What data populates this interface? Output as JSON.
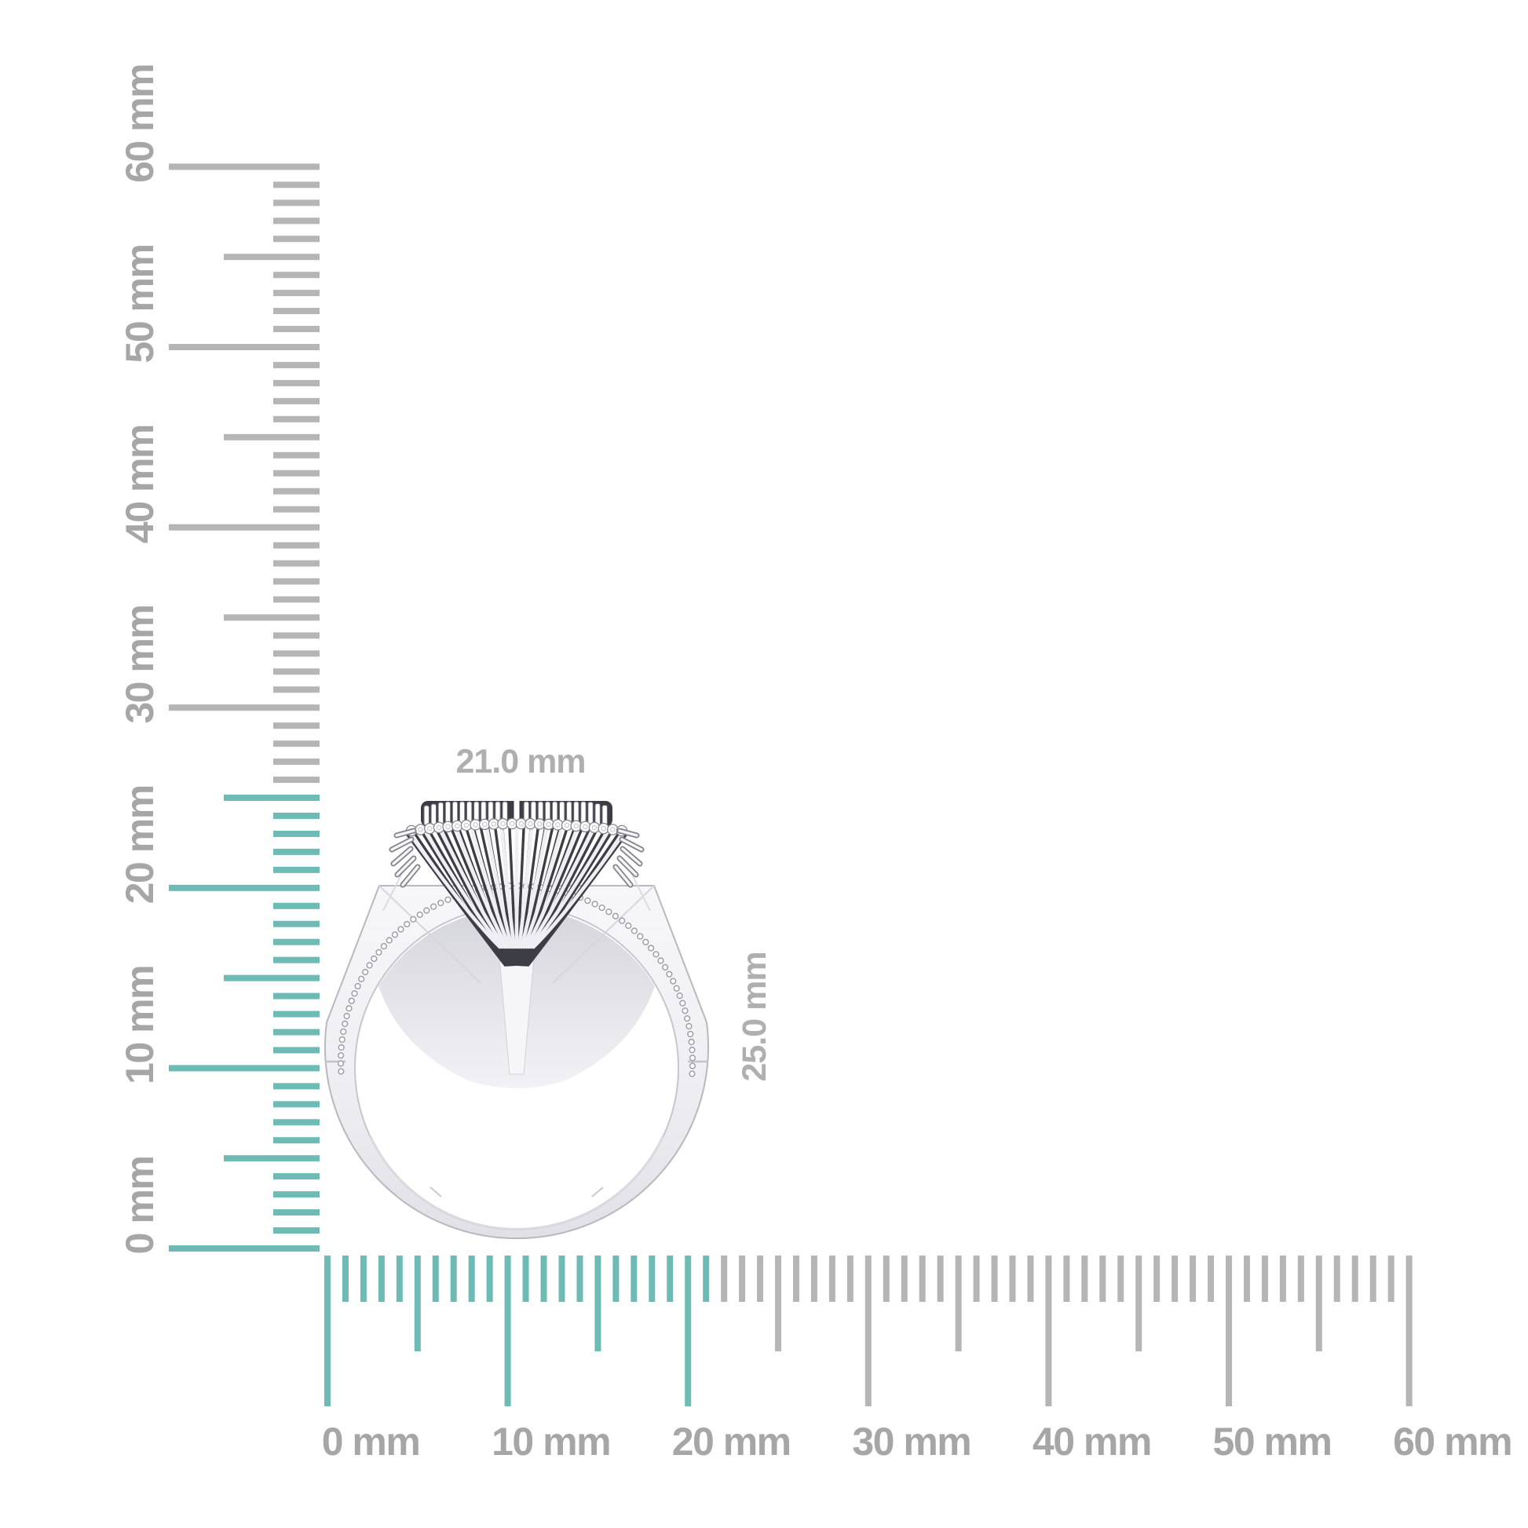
{
  "page": {
    "background": "#ffffff",
    "description": "Product dimension diagram: diamond cluster cocktail ring shown in side profile against white background with millimeter rulers along left and bottom edges"
  },
  "product": {
    "subject": "white-metal diamond cluster ring, side profile view"
  },
  "dimensions": {
    "width_label": "21.0 mm",
    "height_label": "25.0 mm"
  },
  "rulers": {
    "unit": "mm",
    "horizontal": {
      "min": 0,
      "max": 60,
      "major_step": 10,
      "mid_step": 5,
      "minor_step": 1,
      "highlight_extent_mm": 21,
      "labels": [
        "0 mm",
        "10 mm",
        "20 mm",
        "30 mm",
        "40 mm",
        "50 mm",
        "60 mm"
      ]
    },
    "vertical": {
      "min": 0,
      "max": 60,
      "major_step": 10,
      "mid_step": 5,
      "minor_step": 1,
      "highlight_extent_mm": 25,
      "labels": [
        "0 mm",
        "10 mm",
        "20 mm",
        "30 mm",
        "40 mm",
        "50 mm",
        "60 mm"
      ]
    }
  },
  "colors": {
    "highlight_teal": "#6ebab4",
    "tick_gray": "#b5b5b5",
    "ruler_label_gray": "#a6a6a6",
    "dimension_label_gray": "#afafaf",
    "metal_light": "#f6f6f8",
    "metal_mid": "#e9e9ee",
    "metal_edge": "#b8b8be",
    "basket_dark": "#3d3d45"
  }
}
